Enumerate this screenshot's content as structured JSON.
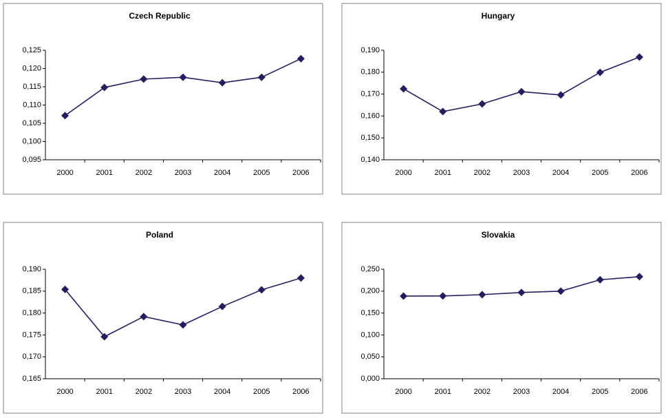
{
  "chart_data": [
    {
      "type": "line",
      "title": "Czech Republic",
      "categories": [
        "2000",
        "2001",
        "2002",
        "2003",
        "2004",
        "2005",
        "2006"
      ],
      "values": [
        0.1071,
        0.1148,
        0.1171,
        0.1176,
        0.1161,
        0.1176,
        0.1227
      ],
      "color": "#231f5f",
      "ylim": [
        0.095,
        0.125
      ],
      "yticks": [
        {
          "value": 0.095,
          "label": "0,095"
        },
        {
          "value": 0.1,
          "label": "0,100"
        },
        {
          "value": 0.105,
          "label": "0,105"
        },
        {
          "value": 0.11,
          "label": "0,110"
        },
        {
          "value": 0.115,
          "label": "0,115"
        },
        {
          "value": 0.12,
          "label": "0,120"
        },
        {
          "value": 0.125,
          "label": "0,125"
        }
      ]
    },
    {
      "type": "line",
      "title": "Hungary",
      "categories": [
        "2000",
        "2001",
        "2002",
        "2003",
        "2004",
        "2005",
        "2006"
      ],
      "values": [
        0.1724,
        0.162,
        0.1655,
        0.1711,
        0.1696,
        0.1799,
        0.1869
      ],
      "color": "#231f5f",
      "ylim": [
        0.14,
        0.19
      ],
      "yticks": [
        {
          "value": 0.14,
          "label": "0,140"
        },
        {
          "value": 0.15,
          "label": "0,150"
        },
        {
          "value": 0.16,
          "label": "0,160"
        },
        {
          "value": 0.17,
          "label": "0,170"
        },
        {
          "value": 0.18,
          "label": "0,180"
        },
        {
          "value": 0.19,
          "label": "0,190"
        }
      ]
    },
    {
      "type": "line",
      "title": "Poland",
      "categories": [
        "2000",
        "2001",
        "2002",
        "2003",
        "2004",
        "2005",
        "2006"
      ],
      "values": [
        0.1854,
        0.1746,
        0.1792,
        0.1773,
        0.1815,
        0.1853,
        0.188
      ],
      "color": "#231f5f",
      "ylim": [
        0.165,
        0.19
      ],
      "yticks": [
        {
          "value": 0.165,
          "label": "0,165"
        },
        {
          "value": 0.17,
          "label": "0,170"
        },
        {
          "value": 0.175,
          "label": "0,175"
        },
        {
          "value": 0.18,
          "label": "0,180"
        },
        {
          "value": 0.185,
          "label": "0,185"
        },
        {
          "value": 0.19,
          "label": "0,190"
        }
      ]
    },
    {
      "type": "line",
      "title": "Slovakia",
      "categories": [
        "2000",
        "2001",
        "2002",
        "2003",
        "2004",
        "2005",
        "2006"
      ],
      "values": [
        0.1887,
        0.189,
        0.192,
        0.197,
        0.2,
        0.226,
        0.233
      ],
      "color": "#231f5f",
      "ylim": [
        0,
        0.25
      ],
      "yticks": [
        {
          "value": 0,
          "label": "0,000"
        },
        {
          "value": 0.05,
          "label": "0,050"
        },
        {
          "value": 0.1,
          "label": "0,100"
        },
        {
          "value": 0.15,
          "label": "0,150"
        },
        {
          "value": 0.2,
          "label": "0,200"
        },
        {
          "value": 0.25,
          "label": "0,250"
        }
      ]
    }
  ]
}
